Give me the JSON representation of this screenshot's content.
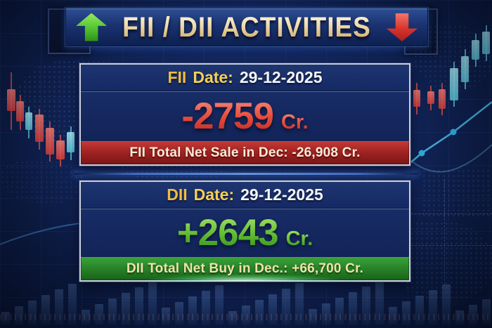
{
  "title": {
    "text": "FII / DII ACTIVITIES"
  },
  "fii": {
    "label": "FII",
    "date_label": "Date:",
    "date_value": "29-12-2025",
    "net_value": "-2759",
    "unit": "Cr.",
    "summary": "FII Total Net Sale in Dec: -26,908 Cr."
  },
  "dii": {
    "label": "DII",
    "date_label": "Date:",
    "date_value": "29-12-2025",
    "net_value": "+2643",
    "unit": "Cr.",
    "summary": "DII Total Net Buy in Dec.: +66,700 Cr."
  },
  "icons": {
    "header_left": "up-arrow-icon",
    "header_right": "down-arrow-icon"
  },
  "colors": {
    "negative_value": "#e23c2e",
    "positive_value": "#4fae27",
    "gold_label": "#f0bc3e",
    "yellow_label": "#f6d054",
    "date_text": "#f4f5f7",
    "red_banner": "#a12423",
    "green_banner": "#288128",
    "title_text": "#ead9a8",
    "accent_blue": "#3d6ecb"
  }
}
